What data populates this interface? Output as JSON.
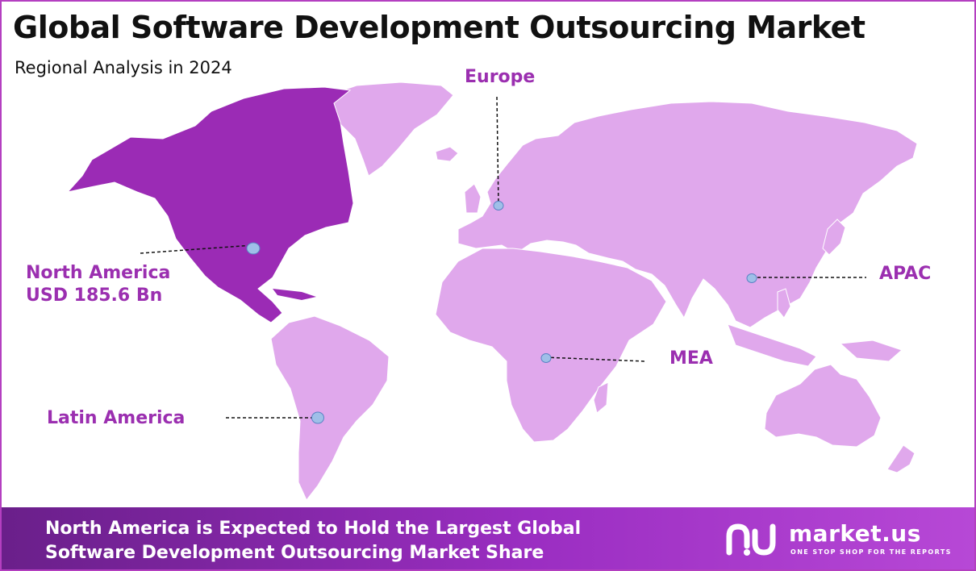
{
  "header": {
    "title": "Global Software Development Outsourcing Market",
    "subtitle": "Regional Analysis in 2024"
  },
  "regions": [
    {
      "id": "north-america",
      "name": "North America",
      "value": "USD 185.6 Bn",
      "highlighted": true
    },
    {
      "id": "europe",
      "name": "Europe",
      "value": "",
      "highlighted": false
    },
    {
      "id": "apac",
      "name": "APAC",
      "value": "",
      "highlighted": false
    },
    {
      "id": "mea",
      "name": "MEA",
      "value": "",
      "highlighted": false
    },
    {
      "id": "latin-america",
      "name": "Latin America",
      "value": "",
      "highlighted": false
    }
  ],
  "footer": {
    "line1": "North America is Expected to Hold the Largest Global",
    "line2": "Software Development Outsourcing Market Share"
  },
  "logo": {
    "name": "market.us",
    "tagline": "ONE STOP SHOP FOR THE REPORTS"
  },
  "colors": {
    "highlight": "#9b2bb5",
    "land": "#e0a8ec",
    "label": "#9b2fb0",
    "marker": "#9fbfe8"
  }
}
